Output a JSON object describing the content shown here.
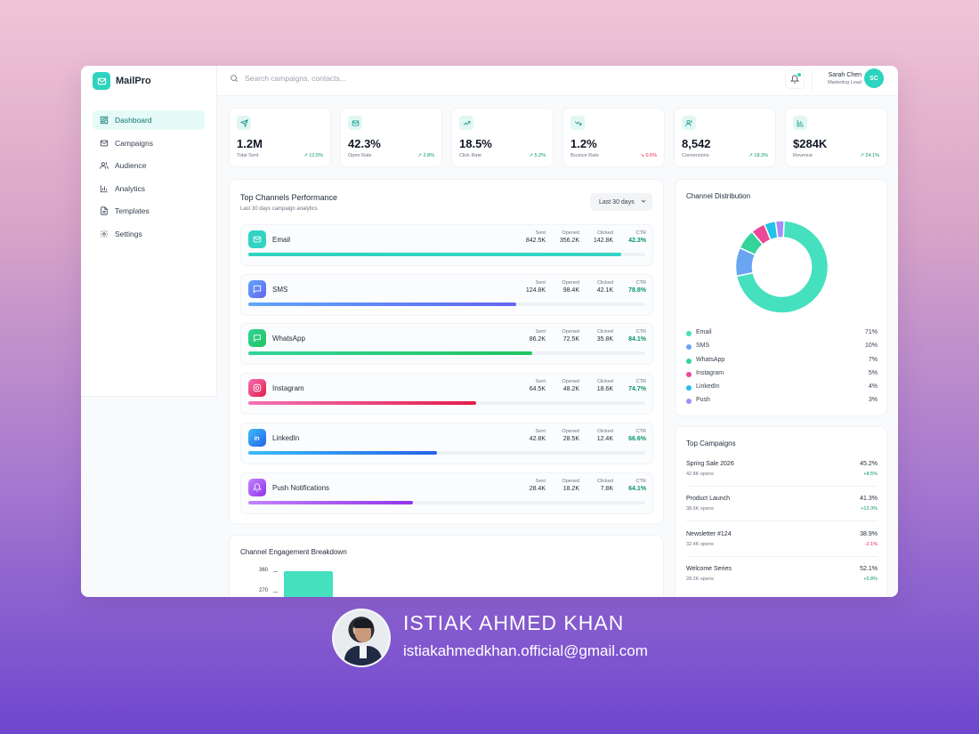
{
  "app": {
    "name": "MailPro"
  },
  "search": {
    "placeholder": "Search campaigns, contacts..."
  },
  "user": {
    "name": "Sarah Chen",
    "role": "Marketing Lead",
    "initials": "SC"
  },
  "nav": [
    {
      "label": "Dashboard",
      "icon": "dashboard-icon",
      "active": true
    },
    {
      "label": "Campaigns",
      "icon": "mail-icon"
    },
    {
      "label": "Audience",
      "icon": "users-icon"
    },
    {
      "label": "Analytics",
      "icon": "bar-chart-icon"
    },
    {
      "label": "Templates",
      "icon": "document-icon"
    },
    {
      "label": "Settings",
      "icon": "gear-icon"
    }
  ],
  "kpis": [
    {
      "value": "1.2M",
      "label": "Total Sent",
      "change": "12.5%",
      "trend": "up",
      "icon": "send-icon"
    },
    {
      "value": "42.3%",
      "label": "Open Rate",
      "change": "2.8%",
      "trend": "up",
      "icon": "mail-icon"
    },
    {
      "value": "18.5%",
      "label": "Click Rate",
      "change": "5.2%",
      "trend": "up",
      "icon": "trend-up-icon"
    },
    {
      "value": "1.2%",
      "label": "Bounce Rate",
      "change": "0.5%",
      "trend": "down",
      "icon": "trend-down-icon"
    },
    {
      "value": "8,542",
      "label": "Conversions",
      "change": "18.3%",
      "trend": "up",
      "icon": "users-icon"
    },
    {
      "value": "$284K",
      "label": "Revenue",
      "change": "24.1%",
      "trend": "up",
      "icon": "bar-chart-icon"
    }
  ],
  "performance": {
    "title": "Top Channels Performance",
    "subtitle": "Last 30 days campaign analytics",
    "range": "Last 30 days",
    "stat_labels": {
      "sent": "Sent",
      "opened": "Opened",
      "clicked": "Clicked",
      "ctr": "CTR"
    },
    "channels": [
      {
        "name": "Email",
        "sent": "842.5K",
        "opened": "356.2K",
        "clicked": "142.8K",
        "ctr": "42.3%",
        "progress": 0.94,
        "color": "#2dd4bf",
        "color2": "#34d3c5",
        "icon": "mail-icon"
      },
      {
        "name": "SMS",
        "sent": "124.8K",
        "opened": "98.4K",
        "clicked": "42.1K",
        "ctr": "78.8%",
        "progress": 0.675,
        "color": "#60a5fa",
        "color2": "#6366f1",
        "icon": "chat-icon"
      },
      {
        "name": "WhatsApp",
        "sent": "86.2K",
        "opened": "72.5K",
        "clicked": "35.8K",
        "ctr": "84.1%",
        "progress": 0.715,
        "color": "#34d399",
        "color2": "#22c55e",
        "icon": "message-icon"
      },
      {
        "name": "Instagram",
        "sent": "64.5K",
        "opened": "48.2K",
        "clicked": "18.6K",
        "ctr": "74.7%",
        "progress": 0.575,
        "color": "#f472b6",
        "color2": "#e11d48",
        "icon": "instagram-icon"
      },
      {
        "name": "LinkedIn",
        "sent": "42.8K",
        "opened": "28.5K",
        "clicked": "12.4K",
        "ctr": "66.6%",
        "progress": 0.475,
        "color": "#38bdf8",
        "color2": "#2563eb",
        "icon": "linkedin-icon"
      },
      {
        "name": "Push Notifications",
        "sent": "28.4K",
        "opened": "18.2K",
        "clicked": "7.8K",
        "ctr": "64.1%",
        "progress": 0.415,
        "color": "#c084fc",
        "color2": "#9333ea",
        "icon": "bell-icon"
      }
    ]
  },
  "engagement": {
    "title": "Channel Engagement Breakdown",
    "ticks": [
      "360",
      "270"
    ]
  },
  "distribution": {
    "title": "Channel Distribution",
    "items": [
      {
        "name": "Email",
        "pct": "71%",
        "value": 71,
        "color": "#45e0be"
      },
      {
        "name": "SMS",
        "pct": "10%",
        "value": 10,
        "color": "#6aa5f2"
      },
      {
        "name": "WhatsApp",
        "pct": "7%",
        "value": 7,
        "color": "#34d399"
      },
      {
        "name": "Instagram",
        "pct": "5%",
        "value": 5,
        "color": "#ec4899"
      },
      {
        "name": "LinkedIn",
        "pct": "4%",
        "value": 4,
        "color": "#22c3e6"
      },
      {
        "name": "Push",
        "pct": "3%",
        "value": 3,
        "color": "#a78bfa"
      }
    ]
  },
  "campaigns": {
    "title": "Top Campaigns",
    "items": [
      {
        "name": "Spring Sale 2026",
        "opens": "42.8K opens",
        "rate": "45.2%",
        "change": "+8.5%",
        "trend": "up"
      },
      {
        "name": "Product Launch",
        "opens": "38.5K opens",
        "rate": "41.3%",
        "change": "+12.3%",
        "trend": "up"
      },
      {
        "name": "Newsletter #124",
        "opens": "32.4K opens",
        "rate": "38.9%",
        "change": "-2.1%",
        "trend": "down"
      },
      {
        "name": "Welcome Series",
        "opens": "28.2K opens",
        "rate": "52.1%",
        "change": "+5.8%",
        "trend": "up"
      }
    ]
  },
  "author": {
    "name": "ISTIAK AHMED KHAN",
    "email": "istiakahmedkhan.official@gmail.com"
  }
}
